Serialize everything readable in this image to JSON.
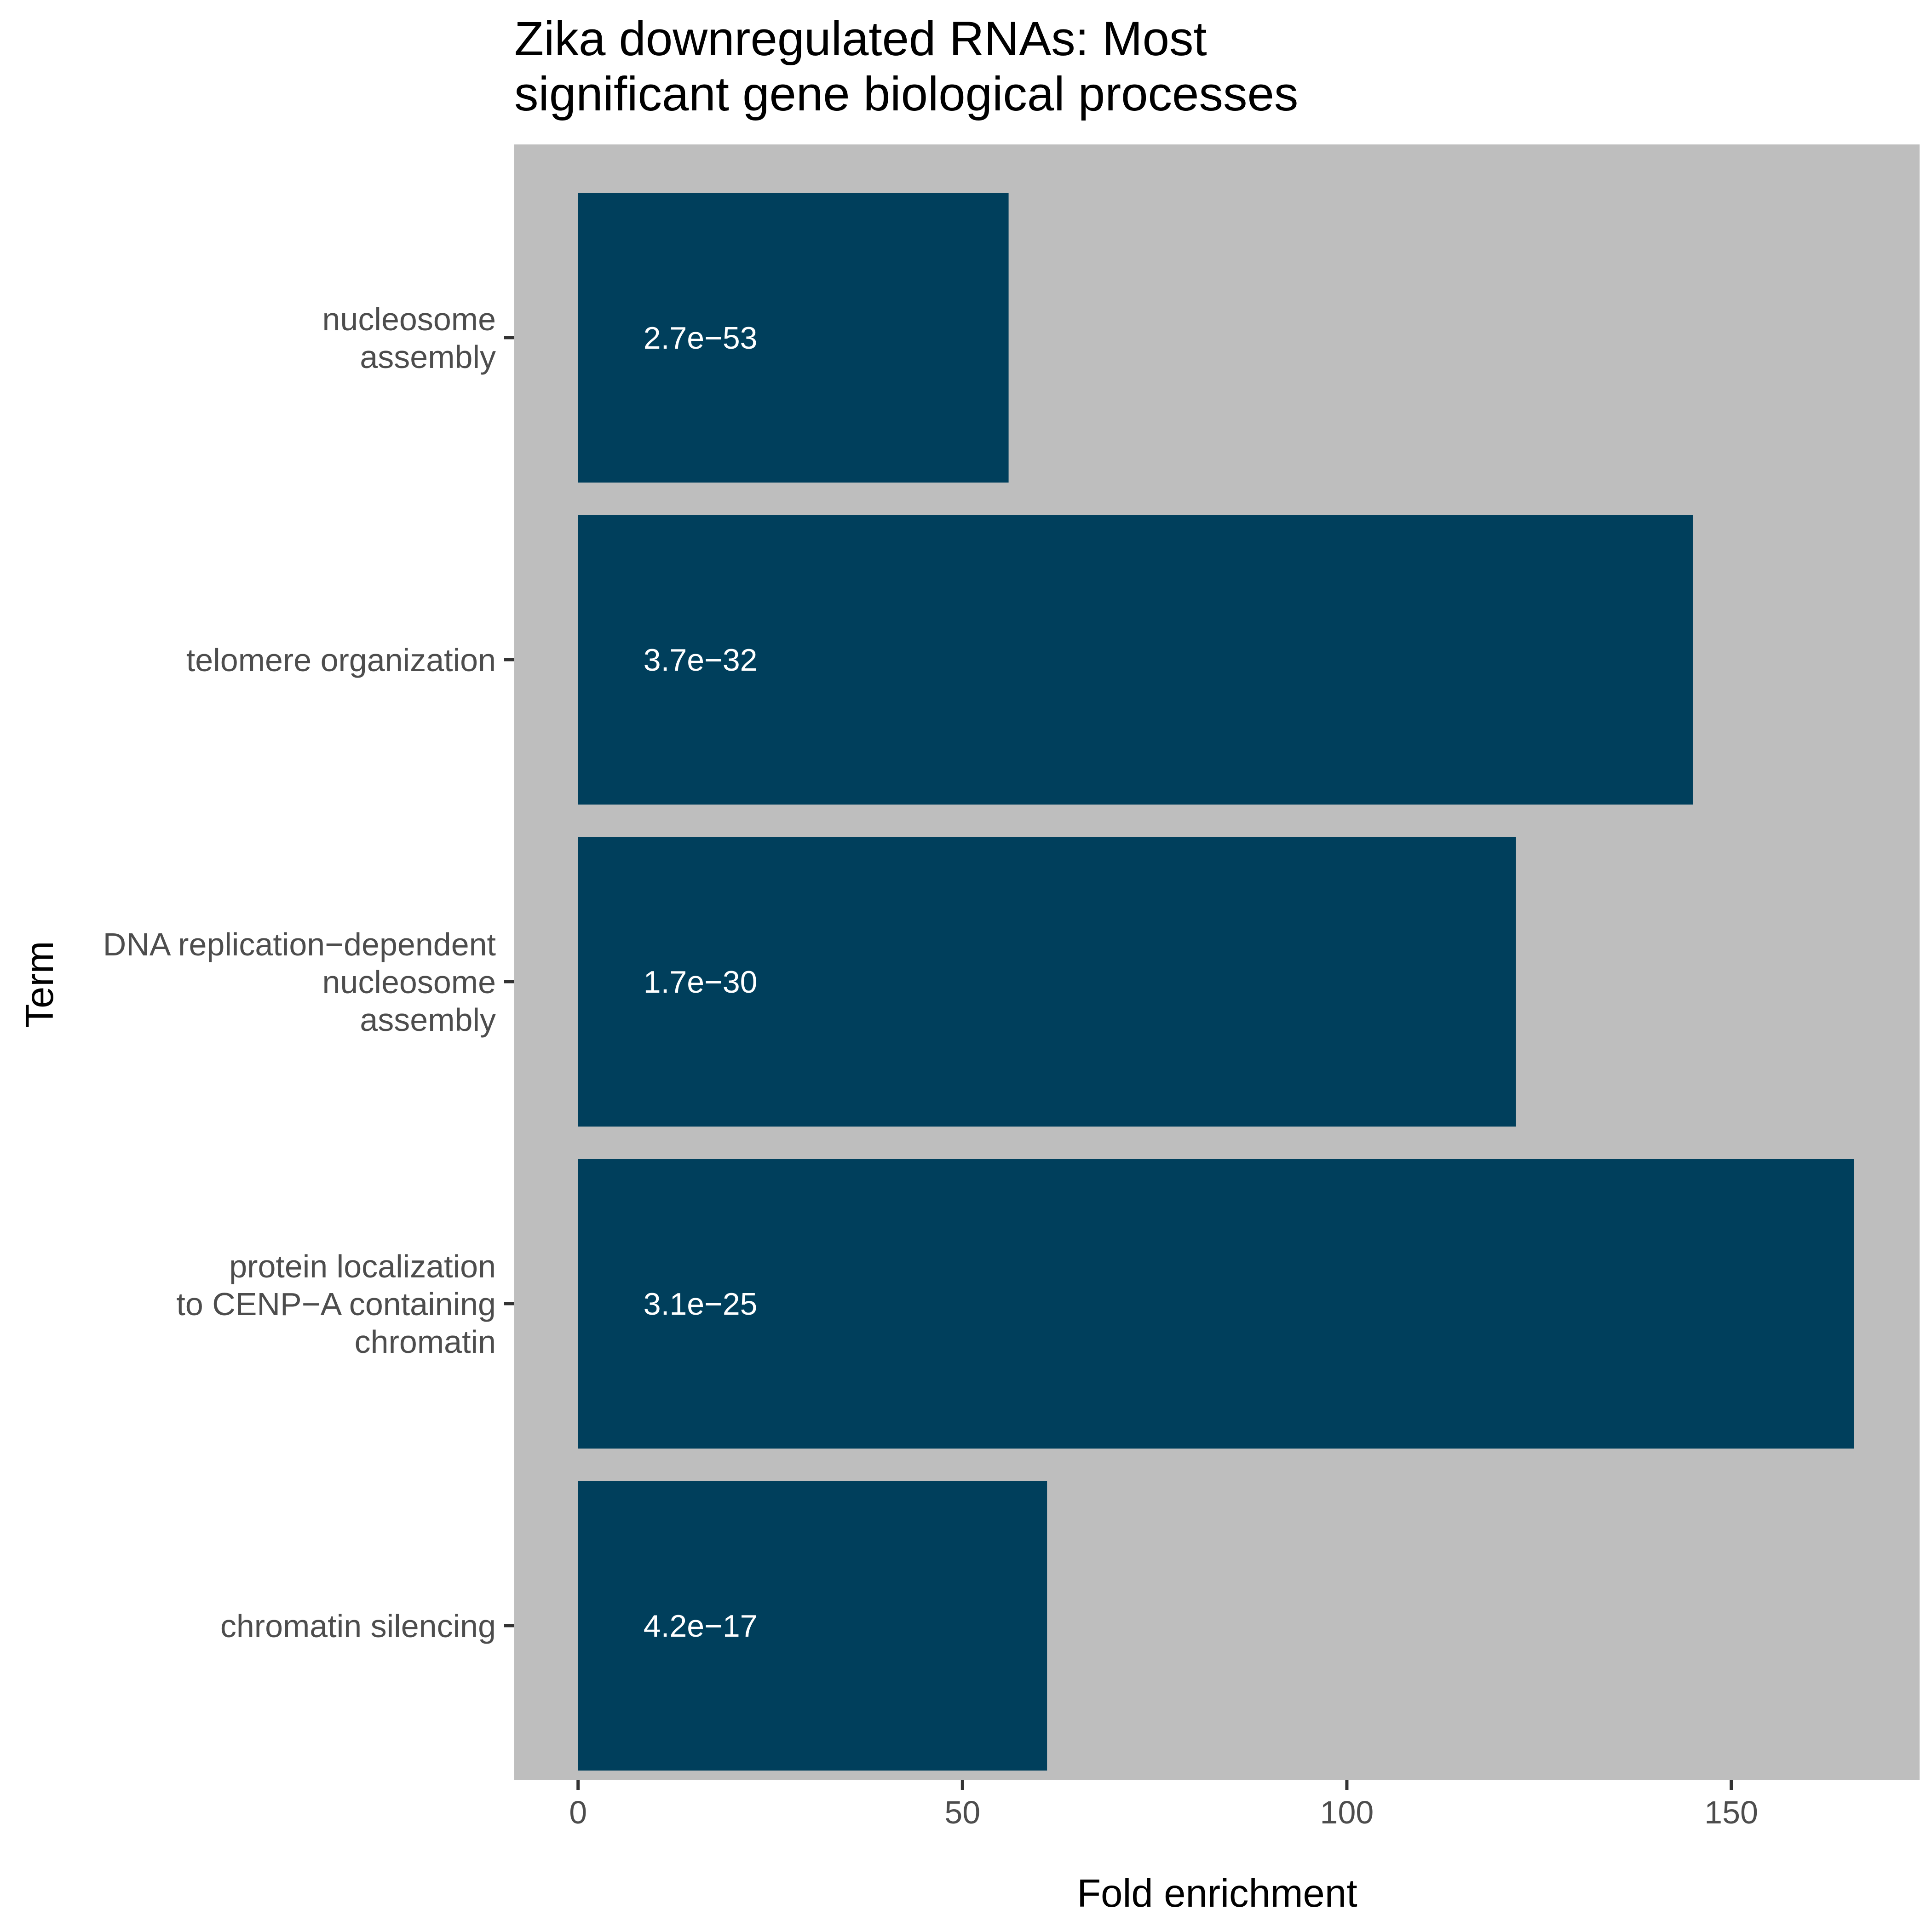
{
  "chart_data": {
    "type": "bar",
    "orientation": "horizontal",
    "title": "Zika downregulated RNAs: Most\nsignificant gene biological processes",
    "xlabel": "Fold enrichment",
    "ylabel": "Term",
    "xlim": [
      -8.3,
      174.5
    ],
    "xticks": [
      0,
      50,
      100,
      150
    ],
    "grid": false,
    "legend": "none",
    "colors": {
      "bar": "#003f5c",
      "panel": "#bebebe",
      "background": "#ffffff"
    },
    "categories": [
      "nucleosome\nassembly",
      "telomere organization",
      "DNA replication−dependent\nnucleosome\nassembly",
      "protein localization\nto CENP−A containing\nchromatin",
      "chromatin silencing"
    ],
    "values": [
      56,
      145,
      122,
      166,
      61
    ],
    "labels": [
      "2.7e−53",
      "3.7e−32",
      "1.7e−30",
      "3.1e−25",
      "4.2e−17"
    ]
  }
}
